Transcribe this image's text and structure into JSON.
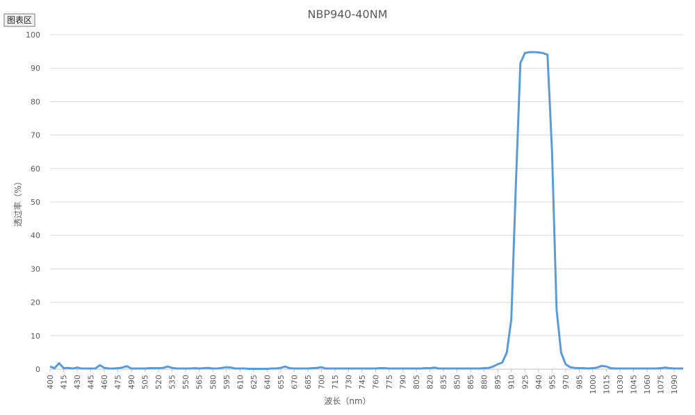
{
  "badge": "图表区",
  "chart_data": {
    "type": "line",
    "title": "NBP940-40NM",
    "xlabel": "波长（nm）",
    "ylabel": "透过率（%）",
    "x": [
      400,
      405,
      410,
      415,
      420,
      425,
      430,
      435,
      440,
      445,
      450,
      455,
      460,
      465,
      470,
      475,
      480,
      485,
      490,
      495,
      500,
      505,
      510,
      515,
      520,
      525,
      530,
      535,
      540,
      545,
      550,
      555,
      560,
      565,
      570,
      575,
      580,
      585,
      590,
      595,
      600,
      605,
      610,
      615,
      620,
      625,
      630,
      635,
      640,
      645,
      650,
      655,
      660,
      665,
      670,
      675,
      680,
      685,
      690,
      695,
      700,
      705,
      710,
      715,
      720,
      725,
      730,
      735,
      740,
      745,
      750,
      755,
      760,
      765,
      770,
      775,
      780,
      785,
      790,
      795,
      800,
      805,
      810,
      815,
      820,
      825,
      830,
      835,
      840,
      845,
      850,
      855,
      860,
      865,
      870,
      875,
      880,
      885,
      890,
      895,
      900,
      905,
      910,
      915,
      920,
      925,
      930,
      935,
      940,
      945,
      950,
      955,
      960,
      965,
      970,
      975,
      980,
      985,
      990,
      995,
      1000,
      1005,
      1010,
      1015,
      1020,
      1025,
      1030,
      1035,
      1040,
      1045,
      1050,
      1055,
      1060,
      1065,
      1070,
      1075,
      1080,
      1085,
      1090,
      1095,
      1100
    ],
    "series": [
      {
        "name": "NBP940-40NM",
        "color": "#5b9bd5",
        "values": [
          0.8,
          0.3,
          1.8,
          0.3,
          0.4,
          0.2,
          0.5,
          0.2,
          0.2,
          0.2,
          0.2,
          1.2,
          0.4,
          0.2,
          0.2,
          0.3,
          0.5,
          0.9,
          0.2,
          0.2,
          0.2,
          0.2,
          0.3,
          0.3,
          0.3,
          0.4,
          0.8,
          0.4,
          0.2,
          0.2,
          0.2,
          0.2,
          0.3,
          0.2,
          0.3,
          0.4,
          0.2,
          0.2,
          0.4,
          0.6,
          0.5,
          0.2,
          0.2,
          0.2,
          0.1,
          0.1,
          0.1,
          0.1,
          0.1,
          0.2,
          0.2,
          0.4,
          0.8,
          0.3,
          0.2,
          0.2,
          0.2,
          0.2,
          0.3,
          0.4,
          0.6,
          0.2,
          0.2,
          0.2,
          0.2,
          0.2,
          0.2,
          0.2,
          0.2,
          0.2,
          0.2,
          0.2,
          0.2,
          0.3,
          0.3,
          0.2,
          0.2,
          0.2,
          0.2,
          0.2,
          0.2,
          0.2,
          0.2,
          0.3,
          0.3,
          0.5,
          0.2,
          0.2,
          0.2,
          0.2,
          0.2,
          0.2,
          0.2,
          0.2,
          0.2,
          0.2,
          0.3,
          0.4,
          0.8,
          1.5,
          2,
          5,
          15,
          55,
          91.5,
          94.5,
          94.8,
          94.8,
          94.7,
          94.5,
          94,
          65,
          18,
          5,
          1.5,
          0.6,
          0.4,
          0.3,
          0.3,
          0.2,
          0.3,
          0.5,
          1.0,
          0.8,
          0.3,
          0.2,
          0.2,
          0.2,
          0.2,
          0.2,
          0.2,
          0.2,
          0.2,
          0.2,
          0.2,
          0.3,
          0.5,
          0.3,
          0.2,
          0.2,
          0.2
        ]
      }
    ],
    "xlim": [
      400,
      1100
    ],
    "xticks": [
      400,
      415,
      430,
      445,
      460,
      475,
      490,
      505,
      520,
      535,
      550,
      565,
      580,
      595,
      610,
      625,
      640,
      655,
      670,
      685,
      700,
      715,
      730,
      745,
      760,
      775,
      790,
      805,
      820,
      835,
      850,
      865,
      880,
      895,
      910,
      925,
      940,
      955,
      970,
      985,
      1000,
      1015,
      1030,
      1045,
      1060,
      1075,
      1090
    ],
    "ylim": [
      0,
      100
    ],
    "yticks": [
      0,
      10,
      20,
      30,
      40,
      50,
      60,
      70,
      80,
      90,
      100
    ],
    "grid": true
  }
}
